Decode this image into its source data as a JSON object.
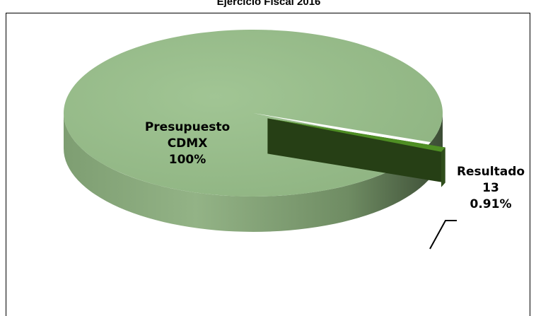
{
  "chart_data": {
    "type": "pie3d",
    "title": "Ejercicio Fiscal 2016",
    "categories": [
      "Presupuesto CDMX",
      "Resultado 13"
    ],
    "values": [
      100,
      0.91
    ],
    "value_labels": [
      "100%",
      "0.91%"
    ],
    "colors": [
      "#93b986",
      "#4f8f24"
    ]
  }
}
